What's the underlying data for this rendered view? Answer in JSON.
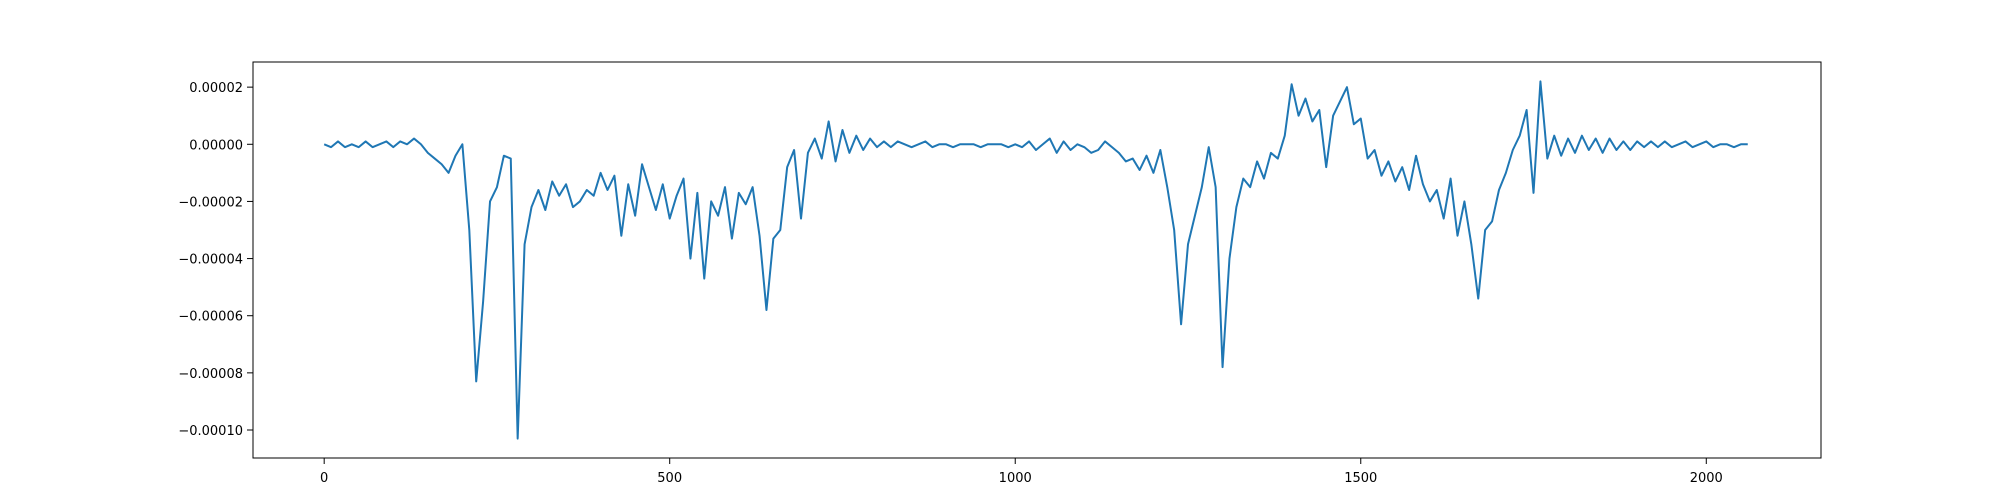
{
  "chart_data": {
    "type": "line",
    "color": "#1f77b4",
    "x": [
      0,
      10,
      20,
      30,
      40,
      50,
      60,
      70,
      80,
      90,
      100,
      110,
      120,
      130,
      140,
      150,
      160,
      170,
      180,
      190,
      200,
      210,
      220,
      230,
      240,
      250,
      260,
      270,
      280,
      290,
      300,
      310,
      320,
      330,
      340,
      350,
      360,
      370,
      380,
      390,
      400,
      410,
      420,
      430,
      440,
      450,
      460,
      470,
      480,
      490,
      500,
      510,
      520,
      530,
      540,
      550,
      560,
      570,
      580,
      590,
      600,
      610,
      620,
      630,
      640,
      650,
      660,
      670,
      680,
      690,
      700,
      710,
      720,
      730,
      740,
      750,
      760,
      770,
      780,
      790,
      800,
      810,
      820,
      830,
      840,
      850,
      860,
      870,
      880,
      890,
      900,
      910,
      920,
      930,
      940,
      950,
      960,
      970,
      980,
      990,
      1000,
      1010,
      1020,
      1030,
      1040,
      1050,
      1060,
      1070,
      1080,
      1090,
      1100,
      1110,
      1120,
      1130,
      1140,
      1150,
      1160,
      1170,
      1180,
      1190,
      1200,
      1210,
      1220,
      1230,
      1240,
      1250,
      1260,
      1270,
      1280,
      1290,
      1300,
      1310,
      1320,
      1330,
      1340,
      1350,
      1360,
      1370,
      1380,
      1390,
      1400,
      1410,
      1420,
      1430,
      1440,
      1450,
      1460,
      1470,
      1480,
      1490,
      1500,
      1510,
      1520,
      1530,
      1540,
      1550,
      1560,
      1570,
      1580,
      1590,
      1600,
      1610,
      1620,
      1630,
      1640,
      1650,
      1660,
      1670,
      1680,
      1690,
      1700,
      1710,
      1720,
      1730,
      1740,
      1750,
      1760,
      1770,
      1780,
      1790,
      1800,
      1810,
      1820,
      1830,
      1840,
      1850,
      1860,
      1870,
      1880,
      1890,
      1900,
      1910,
      1920,
      1930,
      1940,
      1950,
      1960,
      1970,
      1980,
      1990,
      2000,
      2010,
      2020,
      2030,
      2040,
      2050,
      2060
    ],
    "values": [
      0,
      -1e-06,
      1e-06,
      -1e-06,
      0,
      -1e-06,
      1e-06,
      -1e-06,
      0,
      1e-06,
      -1e-06,
      1e-06,
      0,
      2e-06,
      0,
      -3e-06,
      -5e-06,
      -7e-06,
      -1e-05,
      -4e-06,
      0,
      -3e-05,
      -8.3e-05,
      -5.5e-05,
      -2e-05,
      -1.5e-05,
      -4e-06,
      -5e-06,
      -0.000103,
      -3.5e-05,
      -2.2e-05,
      -1.6e-05,
      -2.3e-05,
      -1.3e-05,
      -1.8e-05,
      -1.4e-05,
      -2.2e-05,
      -2e-05,
      -1.6e-05,
      -1.8e-05,
      -1e-05,
      -1.6e-05,
      -1.1e-05,
      -3.2e-05,
      -1.4e-05,
      -2.5e-05,
      -7e-06,
      -1.5e-05,
      -2.3e-05,
      -1.4e-05,
      -2.6e-05,
      -1.8e-05,
      -1.2e-05,
      -4e-05,
      -1.7e-05,
      -4.7e-05,
      -2e-05,
      -2.5e-05,
      -1.5e-05,
      -3.3e-05,
      -1.7e-05,
      -2.1e-05,
      -1.5e-05,
      -3.2e-05,
      -5.8e-05,
      -3.3e-05,
      -3e-05,
      -8e-06,
      -2e-06,
      -2.6e-05,
      -3e-06,
      2e-06,
      -5e-06,
      8e-06,
      -6e-06,
      5e-06,
      -3e-06,
      3e-06,
      -2e-06,
      2e-06,
      -1e-06,
      1e-06,
      -1e-06,
      1e-06,
      0,
      -1e-06,
      0,
      1e-06,
      -1e-06,
      0,
      0,
      -1e-06,
      0,
      0,
      0,
      -1e-06,
      0,
      0,
      0,
      -1e-06,
      0,
      -1e-06,
      1e-06,
      -2e-06,
      0,
      2e-06,
      -3e-06,
      1e-06,
      -2e-06,
      0,
      -1e-06,
      -3e-06,
      -2e-06,
      1e-06,
      -1e-06,
      -3e-06,
      -6e-06,
      -5e-06,
      -9e-06,
      -4e-06,
      -1e-05,
      -2e-06,
      -1.5e-05,
      -3e-05,
      -6.3e-05,
      -3.5e-05,
      -2.5e-05,
      -1.5e-05,
      -1e-06,
      -1.5e-05,
      -7.8e-05,
      -4e-05,
      -2.2e-05,
      -1.2e-05,
      -1.5e-05,
      -6e-06,
      -1.2e-05,
      -3e-06,
      -5e-06,
      3e-06,
      2.1e-05,
      1e-05,
      1.6e-05,
      8e-06,
      1.2e-05,
      -8e-06,
      1e-05,
      1.5e-05,
      2e-05,
      7e-06,
      9e-06,
      -5e-06,
      -2e-06,
      -1.1e-05,
      -6e-06,
      -1.3e-05,
      -8e-06,
      -1.6e-05,
      -4e-06,
      -1.4e-05,
      -2e-05,
      -1.6e-05,
      -2.6e-05,
      -1.2e-05,
      -3.2e-05,
      -2e-05,
      -3.5e-05,
      -5.4e-05,
      -3e-05,
      -2.7e-05,
      -1.6e-05,
      -1e-05,
      -2e-06,
      3e-06,
      1.2e-05,
      -1.7e-05,
      2.2e-05,
      -5e-06,
      3e-06,
      -4e-06,
      2e-06,
      -3e-06,
      3e-06,
      -2e-06,
      2e-06,
      -3e-06,
      2e-06,
      -2e-06,
      1e-06,
      -2e-06,
      1e-06,
      -1e-06,
      1e-06,
      -1e-06,
      1e-06,
      -1e-06,
      0,
      1e-06,
      -1e-06,
      0,
      1e-06,
      -1e-06,
      0,
      0,
      -1e-06,
      0,
      0
    ],
    "xlim": [
      -103,
      2166
    ],
    "ylim": [
      -0.0001098,
      2.88e-05
    ],
    "xticks": [
      0,
      500,
      1000,
      1500,
      2000
    ],
    "yticks": [
      {
        "value": -0.0001,
        "label": "−0.00010"
      },
      {
        "value": -8e-05,
        "label": "−0.00008"
      },
      {
        "value": -6e-05,
        "label": "−0.00006"
      },
      {
        "value": -4e-05,
        "label": "−0.00004"
      },
      {
        "value": -2e-05,
        "label": "−0.00002"
      },
      {
        "value": 0,
        "label": "0.00000"
      },
      {
        "value": 2e-05,
        "label": "0.00002"
      }
    ],
    "grid": false
  }
}
